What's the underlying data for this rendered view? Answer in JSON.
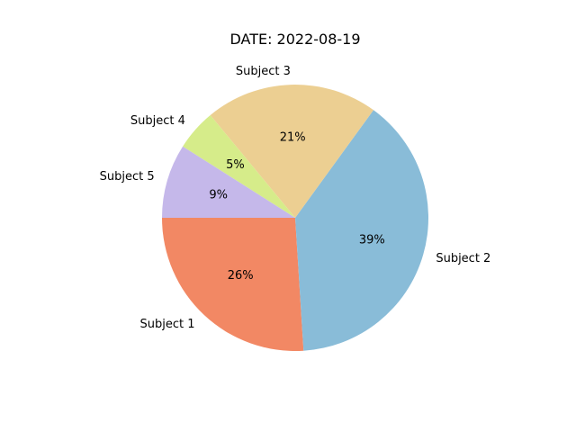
{
  "chart_data": {
    "type": "pie",
    "title": "DATE: 2022-08-19",
    "categories": [
      "Subject 1",
      "Subject 2",
      "Subject 3",
      "Subject 4",
      "Subject 5"
    ],
    "values": [
      26,
      39,
      21,
      5,
      9
    ],
    "percent_labels": [
      "26%",
      "39%",
      "21%",
      "5%",
      "9%"
    ],
    "colors": [
      "#f28864",
      "#89bcd8",
      "#eccf92",
      "#d6ec8a",
      "#c5b8ea"
    ],
    "start_angle_deg": 180,
    "direction": "counterclockwise",
    "legend": "none"
  }
}
